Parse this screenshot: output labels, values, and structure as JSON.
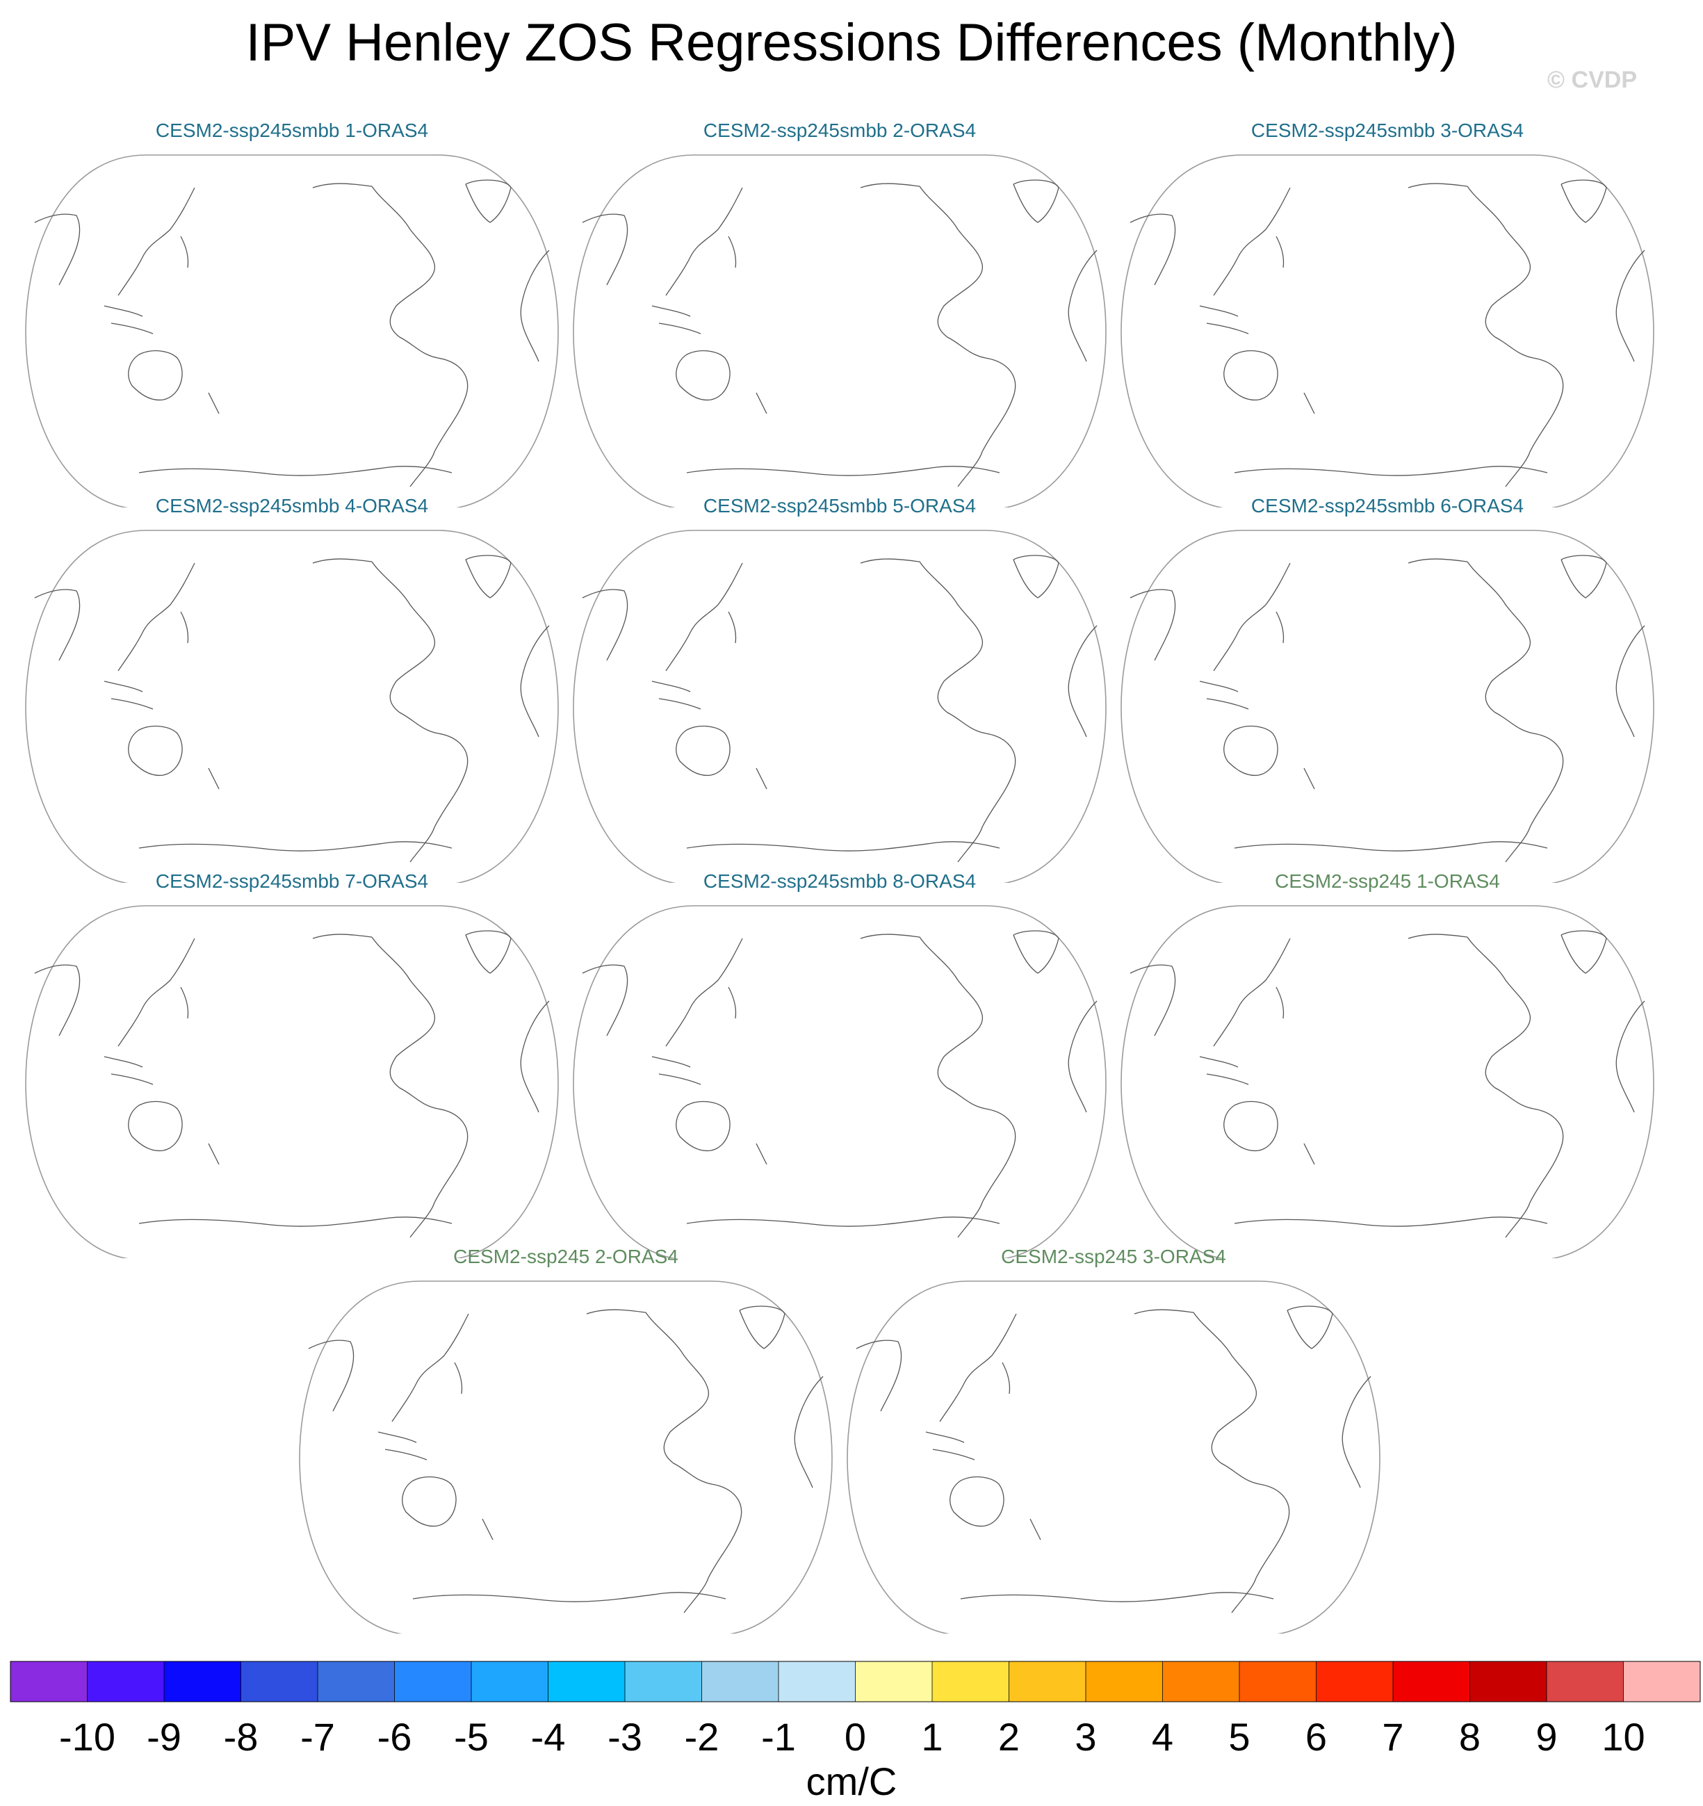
{
  "title": "IPV Henley ZOS Regressions Differences (Monthly)",
  "watermark": "© CVDP",
  "colors": {
    "smbb_title": "#1f6f8b",
    "ssp245_title": "#5e8c5e",
    "map_outline": "#9a9a9a",
    "coast": "#555555"
  },
  "panels": [
    {
      "label": "CESM2-ssp245smbb 1-ORAS4",
      "group": "smbb"
    },
    {
      "label": "CESM2-ssp245smbb 2-ORAS4",
      "group": "smbb"
    },
    {
      "label": "CESM2-ssp245smbb 3-ORAS4",
      "group": "smbb"
    },
    {
      "label": "CESM2-ssp245smbb 4-ORAS4",
      "group": "smbb"
    },
    {
      "label": "CESM2-ssp245smbb 5-ORAS4",
      "group": "smbb"
    },
    {
      "label": "CESM2-ssp245smbb 6-ORAS4",
      "group": "smbb"
    },
    {
      "label": "CESM2-ssp245smbb 7-ORAS4",
      "group": "smbb"
    },
    {
      "label": "CESM2-ssp245smbb 8-ORAS4",
      "group": "smbb"
    },
    {
      "label": "CESM2-ssp245 1-ORAS4",
      "group": "ssp245"
    },
    {
      "label": "CESM2-ssp245 2-ORAS4",
      "group": "ssp245"
    },
    {
      "label": "CESM2-ssp245 3-ORAS4",
      "group": "ssp245"
    }
  ],
  "chart_data": {
    "type": "heatmap",
    "projection": "global map, Pacific-centered",
    "colorbar": {
      "unit_label": "cm/C",
      "tick_labels": [
        "-10",
        "-9",
        "-8",
        "-7",
        "-6",
        "-5",
        "-4",
        "-3",
        "-2",
        "-1",
        "0",
        "1",
        "2",
        "3",
        "4",
        "5",
        "6",
        "7",
        "8",
        "9",
        "10"
      ],
      "colors": [
        "#8a2be2",
        "#4b14ff",
        "#0a0aff",
        "#2e4fe0",
        "#3a6fe0",
        "#2588ff",
        "#1ea6ff",
        "#00bfff",
        "#5ac8f5",
        "#9fd2ee",
        "#c2e4f7",
        "#fffaa0",
        "#ffe23c",
        "#ffc31e",
        "#ffa600",
        "#ff8200",
        "#ff5a00",
        "#ff2800",
        "#f00000",
        "#c80000",
        "#dc4646",
        "#ffb4b4"
      ]
    }
  }
}
